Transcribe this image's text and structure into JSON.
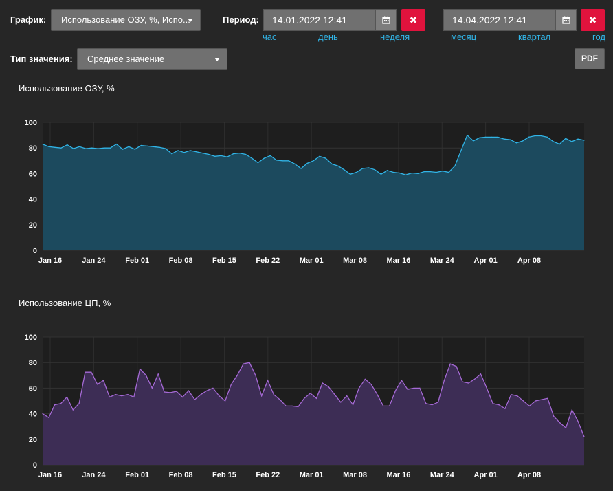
{
  "header": {
    "chart_label": "График:",
    "chart_select": "Использование ОЗУ, %, Испо...",
    "period_label": "Период:",
    "date_from": "14.01.2022 12:41",
    "date_to": "14.04.2022 12:41",
    "dash": "–",
    "clear_glyph": "✖",
    "periods": [
      "час",
      "день",
      "неделя",
      "месяц",
      "квартал",
      "год"
    ],
    "active_period": "квартал",
    "value_type_label": "Тип значения:",
    "value_type_select": "Среднее значение",
    "pdf_label": "PDF"
  },
  "colors": {
    "ram_line": "#31b4e6",
    "ram_fill": "#1c4a5e",
    "cpu_line": "#a66ad6",
    "cpu_fill": "#3d2d55",
    "plot_bg": "#1e1e1e",
    "clear_button": "#e0133d"
  },
  "chart_data": [
    {
      "type": "area",
      "title": "Использование ОЗУ, %",
      "ylim": [
        0,
        100
      ],
      "yticks": [
        0,
        20,
        40,
        60,
        80,
        100
      ],
      "x_tick_labels": [
        "Jan 16",
        "Jan 24",
        "Feb 01",
        "Feb 08",
        "Feb 15",
        "Feb 22",
        "Mar 01",
        "Mar 08",
        "Mar 16",
        "Mar 24",
        "Apr 01",
        "Apr 08"
      ],
      "values": [
        83,
        81,
        80.5,
        80,
        82.5,
        79.5,
        81,
        79.5,
        80,
        79.5,
        80,
        80,
        83,
        79,
        81,
        79,
        82,
        81.5,
        81,
        80.5,
        79.5,
        75.5,
        78,
        76.5,
        78,
        77,
        76,
        75,
        73.5,
        74,
        73,
        75.5,
        76,
        75,
        72,
        68.5,
        72,
        74,
        70.5,
        70,
        70,
        67.5,
        64,
        68,
        70,
        73.5,
        72,
        67.5,
        66,
        63,
        59.5,
        61,
        64,
        64.5,
        63,
        59.5,
        62.5,
        61,
        60.5,
        59,
        60.5,
        60,
        61.5,
        61.5,
        61,
        62,
        61,
        66,
        78,
        90,
        85.5,
        88,
        88.5,
        88.5,
        88.5,
        87,
        86.5,
        84,
        85.5,
        88.5,
        89.5,
        89.5,
        88.5,
        85,
        83,
        87.5,
        85,
        87,
        86
      ]
    },
    {
      "type": "area",
      "title": "Использование ЦП, %",
      "ylim": [
        0,
        100
      ],
      "yticks": [
        0,
        20,
        40,
        60,
        80,
        100
      ],
      "x_tick_labels": [
        "Jan 16",
        "Jan 24",
        "Feb 01",
        "Feb 08",
        "Feb 15",
        "Feb 22",
        "Mar 01",
        "Mar 08",
        "Mar 16",
        "Mar 24",
        "Apr 01",
        "Apr 08"
      ],
      "values": [
        40,
        37,
        47,
        48,
        53,
        43,
        48,
        72.5,
        72.5,
        63,
        66,
        53,
        55,
        54,
        55,
        53,
        75,
        70,
        60,
        71,
        57,
        56.5,
        57.5,
        53,
        58,
        51,
        55,
        58,
        60,
        54,
        50,
        63,
        70,
        79,
        80,
        70,
        54,
        66,
        55,
        51,
        46,
        46,
        45.5,
        52,
        56,
        52,
        64,
        61,
        55,
        49,
        54,
        47,
        60,
        67,
        63,
        55,
        46,
        46,
        58,
        66,
        59,
        60,
        60,
        48,
        47,
        49,
        66,
        79,
        77,
        65,
        64,
        67,
        71,
        60,
        48,
        47,
        44,
        55,
        54,
        50,
        46,
        50,
        51,
        52,
        38,
        33,
        29,
        43,
        34,
        22
      ]
    }
  ]
}
